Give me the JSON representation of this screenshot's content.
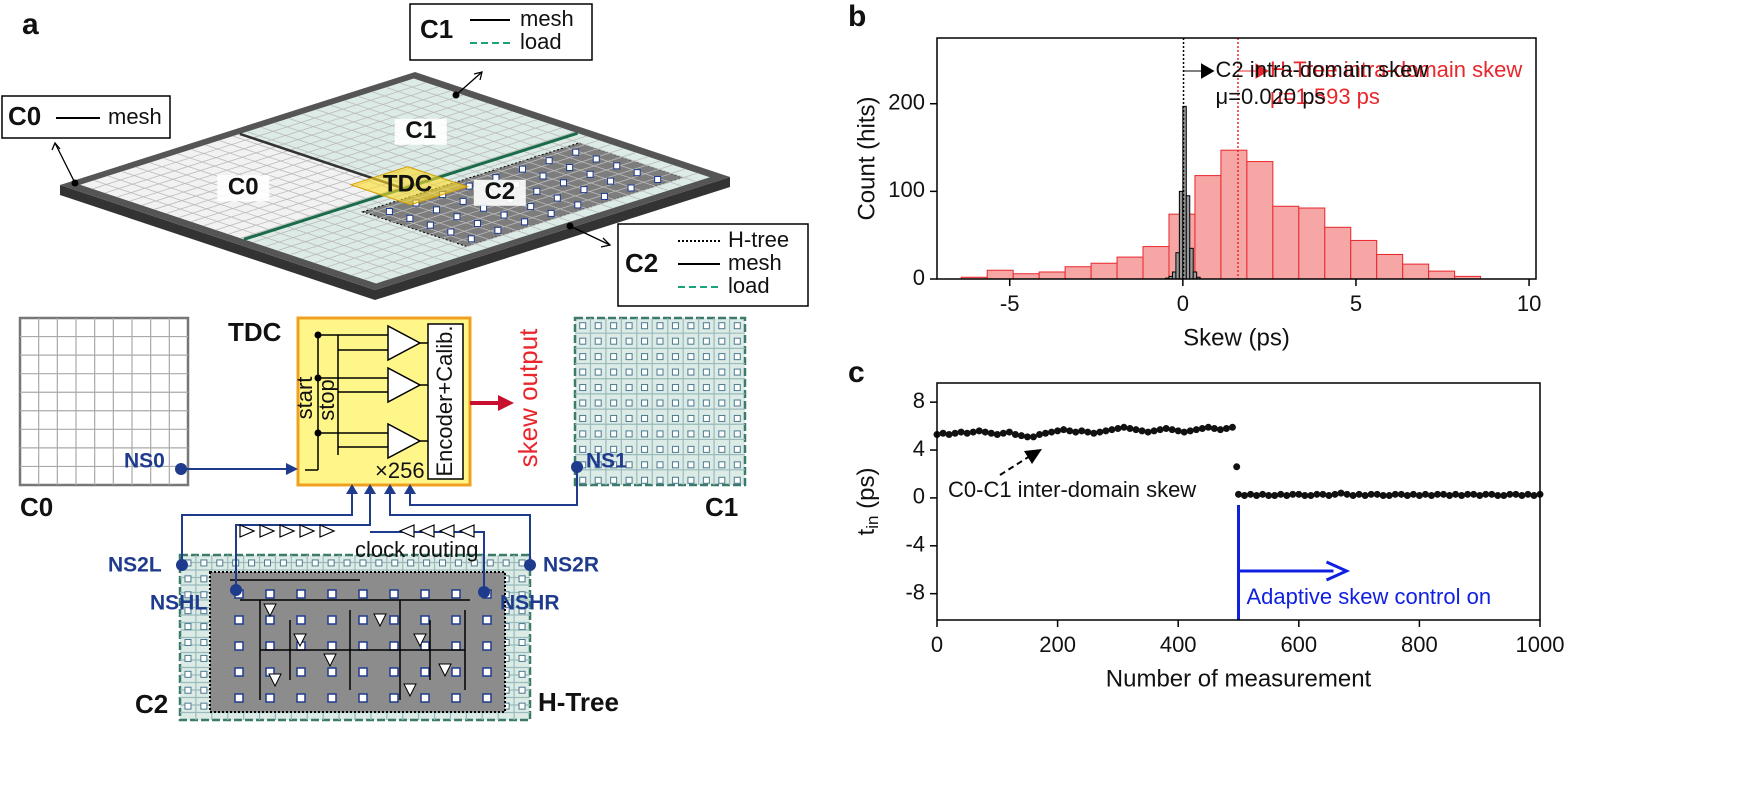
{
  "panel_a": {
    "label": "a",
    "legend_c1": {
      "title": "C1",
      "items": [
        "mesh",
        "load"
      ]
    },
    "legend_c0": {
      "title": "C0",
      "items": [
        "mesh"
      ]
    },
    "legend_c2": {
      "title": "C2",
      "items": [
        "H-tree",
        "mesh",
        "load"
      ]
    },
    "tiles": [
      "C0",
      "C1",
      "C2",
      "TDC"
    ],
    "tdc": {
      "title": "TDC",
      "start": "start",
      "stop": "stop",
      "encoder": "Encoder+Calib.",
      "count": "×256",
      "output": "skew output"
    },
    "domains": {
      "c0": "C0",
      "c1": "C1",
      "c2": "C2",
      "htree": "H-Tree"
    },
    "nodes": [
      "NS0",
      "NS1",
      "NS2L",
      "NS2R",
      "NSHL",
      "NSHR"
    ],
    "routing": "clock routing"
  },
  "chart_data": [
    {
      "type": "histogram",
      "panel": "b",
      "xlabel": "Skew (ps)",
      "ylabel": "Count (hits)",
      "xlim": [
        -7.1,
        10.2
      ],
      "xticks": [
        -5,
        0,
        5,
        10
      ],
      "ylim": [
        0,
        275
      ],
      "yticks": [
        0,
        100,
        200
      ],
      "series": [
        {
          "name": "H-Tree intra-domain skew",
          "color": "#f7a6a6",
          "edge": "#e8262b",
          "bins": [
            -6.4,
            -5.65,
            -4.9,
            -4.15,
            -3.4,
            -2.65,
            -1.9,
            -1.15,
            -0.4,
            0.35,
            1.1,
            1.85,
            2.6,
            3.35,
            4.1,
            4.85,
            5.6,
            6.35,
            7.1,
            7.85,
            8.6
          ],
          "values": [
            2,
            10,
            6,
            8,
            14,
            18,
            25,
            37,
            74,
            118,
            147,
            134,
            83,
            81,
            59,
            44,
            28,
            17,
            9,
            3
          ],
          "mean": 1.593,
          "mean_label": "μ=1.593 ps"
        },
        {
          "name": "C2 intra-domain skew",
          "color": "#9a9a9a",
          "edge": "#000000",
          "bins": [
            -0.5,
            -0.4,
            -0.3,
            -0.2,
            -0.1,
            0,
            0.1,
            0.2,
            0.3,
            0.4,
            0.5
          ],
          "values": [
            1,
            3,
            8,
            30,
            100,
            197,
            95,
            35,
            8,
            2
          ],
          "mean": 0.02,
          "mean_label": "μ=0.020 ps"
        }
      ]
    },
    {
      "type": "scatter",
      "panel": "c",
      "xlabel": "Number of measurement",
      "ylabel": {
        "base": "t",
        "sub": "in",
        "unit": " (ps)"
      },
      "xlim": [
        0,
        1000
      ],
      "xticks": [
        0,
        200,
        400,
        600,
        800,
        1000
      ],
      "ylim": [
        -10.2,
        9.6
      ],
      "yticks": [
        -8,
        -4,
        0,
        4,
        8
      ],
      "color": "#111111",
      "x": [
        0,
        10,
        20,
        30,
        40,
        50,
        60,
        70,
        80,
        90,
        100,
        110,
        120,
        130,
        140,
        150,
        160,
        170,
        180,
        190,
        200,
        210,
        220,
        230,
        240,
        250,
        260,
        270,
        280,
        290,
        300,
        310,
        320,
        330,
        340,
        350,
        360,
        370,
        380,
        390,
        400,
        410,
        420,
        430,
        440,
        450,
        460,
        470,
        480,
        490,
        497,
        500,
        510,
        520,
        530,
        540,
        550,
        560,
        570,
        580,
        590,
        600,
        610,
        620,
        630,
        640,
        650,
        660,
        670,
        680,
        690,
        700,
        710,
        720,
        730,
        740,
        750,
        760,
        770,
        780,
        790,
        800,
        810,
        820,
        830,
        840,
        850,
        860,
        870,
        880,
        890,
        900,
        910,
        920,
        930,
        940,
        950,
        960,
        970,
        980,
        990,
        1000
      ],
      "values": [
        5.3,
        5.4,
        5.3,
        5.4,
        5.5,
        5.4,
        5.5,
        5.6,
        5.5,
        5.4,
        5.3,
        5.4,
        5.5,
        5.3,
        5.2,
        5.1,
        5.1,
        5.3,
        5.4,
        5.5,
        5.6,
        5.7,
        5.6,
        5.5,
        5.6,
        5.5,
        5.4,
        5.5,
        5.6,
        5.7,
        5.8,
        5.9,
        5.8,
        5.7,
        5.6,
        5.5,
        5.6,
        5.7,
        5.8,
        5.7,
        5.6,
        5.5,
        5.6,
        5.7,
        5.8,
        5.9,
        5.8,
        5.7,
        5.8,
        5.9,
        2.6,
        0.3,
        0.2,
        0.3,
        0.2,
        0.3,
        0.2,
        0.2,
        0.3,
        0.2,
        0.3,
        0.3,
        0.2,
        0.2,
        0.3,
        0.3,
        0.2,
        0.3,
        0.4,
        0.3,
        0.2,
        0.3,
        0.2,
        0.3,
        0.3,
        0.2,
        0.2,
        0.3,
        0.3,
        0.2,
        0.3,
        0.2,
        0.3,
        0.2,
        0.3,
        0.3,
        0.2,
        0.3,
        0.2,
        0.3,
        0.3,
        0.2,
        0.3,
        0.3,
        0.2,
        0.2,
        0.3,
        0.3,
        0.2,
        0.3,
        0.2,
        0.3
      ],
      "annotation": "C0-C1 inter-domain skew",
      "event": {
        "x": 500,
        "label": "Adaptive skew control on"
      }
    }
  ]
}
